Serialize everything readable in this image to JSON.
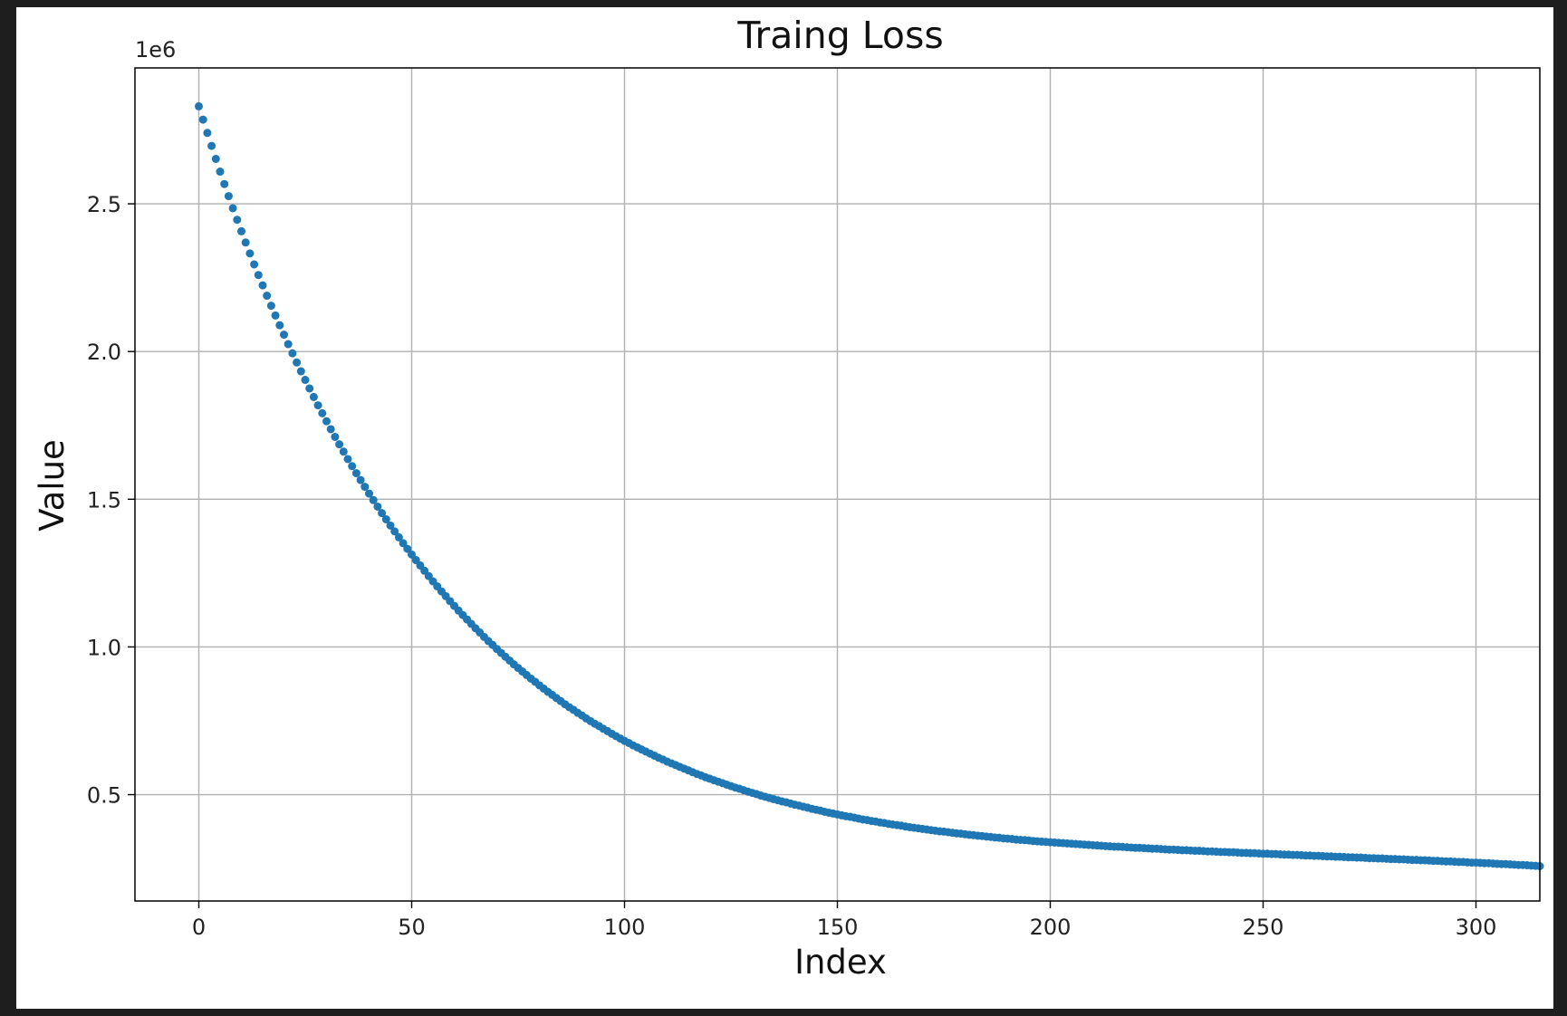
{
  "chart_data": {
    "type": "scatter",
    "title": "Traing Loss",
    "xlabel": "Index",
    "ylabel": "Value",
    "y_offset_label": "1e6",
    "xlim": [
      -15,
      315
    ],
    "ylim": [
      140000,
      2960000
    ],
    "x_ticks": [
      0,
      50,
      100,
      150,
      200,
      250,
      300
    ],
    "x_tick_labels": [
      "0",
      "50",
      "100",
      "150",
      "200",
      "250",
      "300"
    ],
    "y_ticks": [
      500000,
      1000000,
      1500000,
      2000000,
      2500000
    ],
    "y_tick_labels": [
      "0.5",
      "1.0",
      "1.5",
      "2.0",
      "2.5"
    ],
    "grid": true,
    "legend": "none",
    "color": "#1f77b4",
    "series": [
      {
        "x_start": 0,
        "x_step": 1,
        "values": [
          2830000,
          2785000,
          2740000,
          2696000,
          2652000,
          2609000,
          2567000,
          2526000,
          2485000,
          2446000,
          2407000,
          2369000,
          2332000,
          2295000,
          2259000,
          2224000,
          2189000,
          2155000,
          2122000,
          2089000,
          2057000,
          2025000,
          1994000,
          1963000,
          1933000,
          1904000,
          1875000,
          1846000,
          1818000,
          1791000,
          1764000,
          1737000,
          1711000,
          1686000,
          1661000,
          1636000,
          1612000,
          1588000,
          1565000,
          1542000,
          1519000,
          1497000,
          1475000,
          1453000,
          1432000,
          1411000,
          1391000,
          1371000,
          1351000,
          1332000,
          1313000,
          1294000,
          1276000,
          1258000,
          1240000,
          1222000,
          1205000,
          1188000,
          1172000,
          1155000,
          1139000,
          1123000,
          1108000,
          1093000,
          1078000,
          1063000,
          1049000,
          1034000,
          1020000,
          1007000,
          993000,
          980000,
          967000,
          954000,
          941000,
          929000,
          917000,
          905000,
          893000,
          882000,
          870000,
          859000,
          848000,
          838000,
          827000,
          817000,
          806000,
          796000,
          787000,
          777000,
          768000,
          758000,
          749000,
          740000,
          732000,
          723000,
          715000,
          706000,
          698000,
          690000,
          682000,
          675000,
          667000,
          660000,
          653000,
          646000,
          639000,
          632000,
          625000,
          619000,
          612000,
          606000,
          600000,
          594000,
          588000,
          582000,
          576000,
          570000,
          565000,
          559000,
          554000,
          549000,
          544000,
          539000,
          534000,
          529000,
          524000,
          520000,
          515000,
          510000,
          506000,
          502000,
          497000,
          493000,
          489000,
          485000,
          481000,
          477000,
          474000,
          470000,
          466000,
          463000,
          459000,
          456000,
          452000,
          449000,
          446000,
          442000,
          439000,
          436000,
          433000,
          430000,
          427000,
          425000,
          422000,
          419000,
          416000,
          414000,
          411000,
          409000,
          406000,
          404000,
          401000,
          399000,
          397000,
          395000,
          392000,
          390000,
          388000,
          386000,
          384000,
          382000,
          380000,
          378000,
          376000,
          375000,
          373000,
          371000,
          369000,
          368000,
          366000,
          364000,
          363000,
          361000,
          360000,
          358000,
          357000,
          355000,
          354000,
          352000,
          351000,
          350000,
          348000,
          347000,
          346000,
          345000,
          343000,
          342000,
          341000,
          340000,
          339000,
          338000,
          337000,
          336000,
          335000,
          334000,
          333000,
          332000,
          331000,
          330000,
          329000,
          328000,
          327000,
          326000,
          325000,
          324000,
          324000,
          323000,
          322000,
          321000,
          320000,
          320000,
          319000,
          318000,
          317000,
          317000,
          316000,
          315000,
          314000,
          314000,
          313000,
          312000,
          312000,
          311000,
          310000,
          310000,
          309000,
          308000,
          308000,
          307000,
          306000,
          306000,
          305000,
          305000,
          304000,
          303000,
          303000,
          302000,
          302000,
          301000,
          300000,
          300000,
          299000,
          299000,
          298000,
          297000,
          297000,
          296000,
          296000,
          295000,
          294000,
          294000,
          293000,
          293000,
          292000,
          291000,
          291000,
          290000,
          290000,
          289000,
          288000,
          288000,
          287000,
          287000,
          286000,
          285000,
          285000,
          284000,
          284000,
          283000,
          282000,
          282000,
          281000,
          281000,
          280000,
          279000,
          279000,
          278000,
          278000,
          277000,
          276000,
          276000,
          275000,
          274000,
          274000,
          273000,
          272000,
          272000,
          271000,
          270000,
          270000,
          269000,
          268000,
          268000,
          267000,
          266000,
          265000,
          265000,
          264000,
          263000,
          262000,
          262000,
          261000,
          260000,
          259000,
          258000
        ]
      }
    ]
  }
}
